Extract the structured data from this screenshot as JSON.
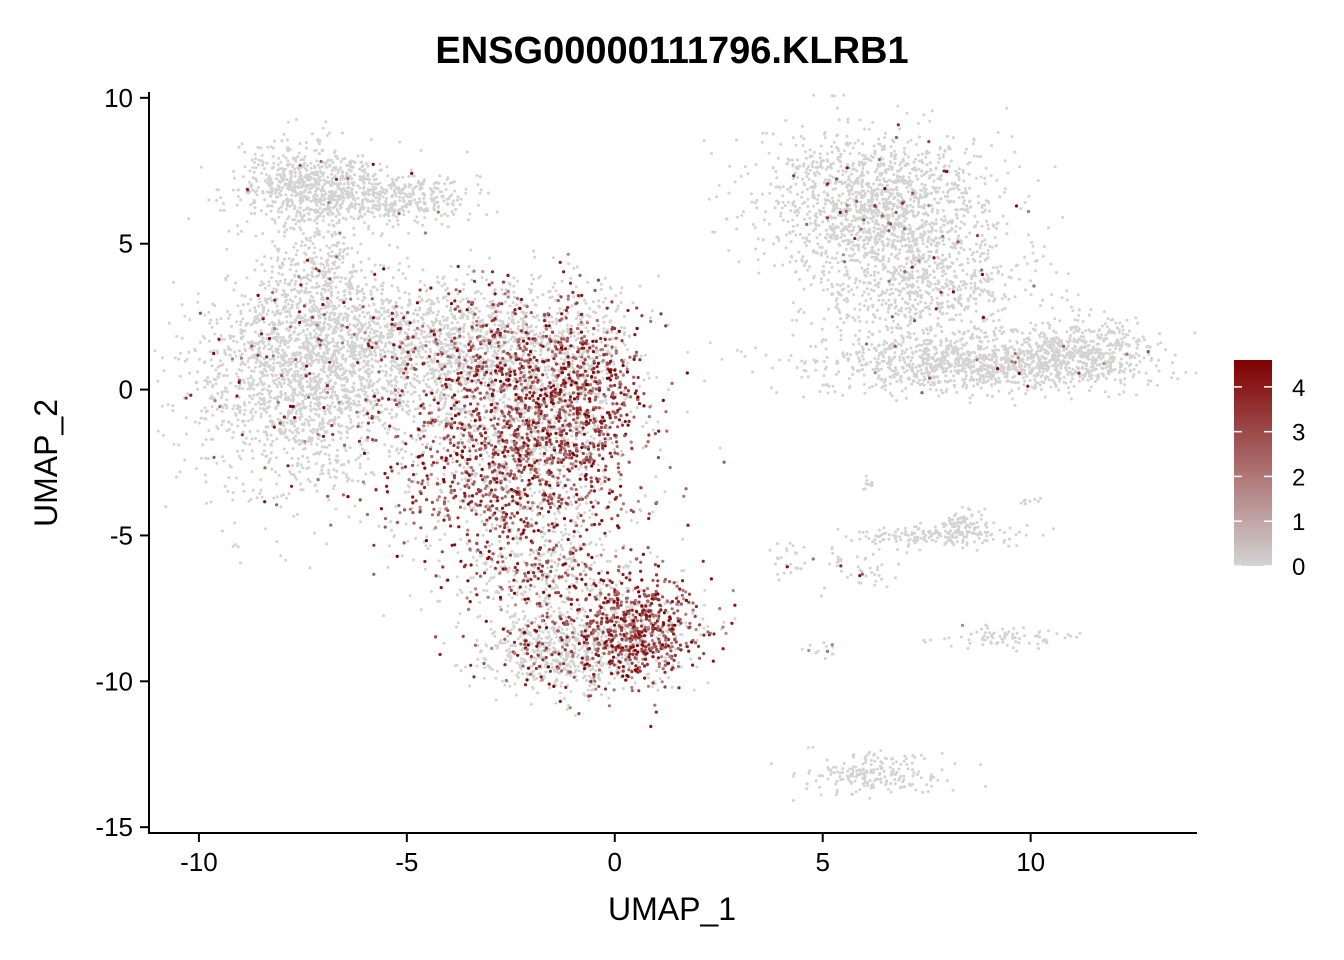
{
  "chart_data": {
    "type": "scatter",
    "title": "ENSG00000111796.KLRB1",
    "xlabel": "UMAP_1",
    "ylabel": "UMAP_2",
    "xlim": [
      -11.2,
      14
    ],
    "ylim": [
      -15.2,
      10.2
    ],
    "xticks": [
      -10,
      -5,
      0,
      5,
      10
    ],
    "yticks": [
      -15,
      -10,
      -5,
      0,
      5,
      10
    ],
    "xtick_labels": [
      "-10",
      "-5",
      "0",
      "5",
      "10"
    ],
    "ytick_labels": [
      "-15",
      "-10",
      "-5",
      "0",
      "5",
      "10"
    ],
    "grid": false,
    "legend_position": "right",
    "color_scale": {
      "low": "#d3d3d3",
      "high": "#7f0000",
      "min": 0,
      "max": 4.6,
      "ticks": [
        0,
        1,
        2,
        3,
        4
      ],
      "tick_labels": [
        "0",
        "1",
        "2",
        "3",
        "4"
      ]
    },
    "clusters": [
      {
        "cx": -7.3,
        "cy": 7.0,
        "sx": 0.85,
        "sy": 0.75,
        "n": 700,
        "expr_frac": 0.02
      },
      {
        "cx": -5.2,
        "cy": 6.6,
        "sx": 1.0,
        "sy": 0.45,
        "n": 350,
        "expr_frac": 0.02
      },
      {
        "cx": -7.2,
        "cy": 4.0,
        "sx": 0.6,
        "sy": 1.0,
        "n": 250,
        "expr_frac": 0.04
      },
      {
        "cx": -7.6,
        "cy": 0.4,
        "sx": 1.3,
        "sy": 1.9,
        "n": 1700,
        "expr_frac": 0.04
      },
      {
        "cx": -5.0,
        "cy": 1.5,
        "sx": 1.6,
        "sy": 1.1,
        "n": 1100,
        "expr_frac": 0.07
      },
      {
        "cx": -2.2,
        "cy": 1.8,
        "sx": 1.3,
        "sy": 1.0,
        "n": 700,
        "expr_frac": 0.25
      },
      {
        "cx": -2.5,
        "cy": -2.0,
        "sx": 1.5,
        "sy": 2.1,
        "n": 2000,
        "expr_frac": 0.55
      },
      {
        "cx": -1.0,
        "cy": -0.3,
        "sx": 0.8,
        "sy": 1.4,
        "n": 700,
        "expr_frac": 0.6
      },
      {
        "cx": -1.7,
        "cy": -6.3,
        "sx": 0.9,
        "sy": 0.8,
        "n": 350,
        "expr_frac": 0.3
      },
      {
        "cx": 0.6,
        "cy": -8.2,
        "sx": 0.75,
        "sy": 0.9,
        "n": 750,
        "expr_frac": 0.7
      },
      {
        "cx": -1.2,
        "cy": -9.0,
        "sx": 1.0,
        "sy": 0.7,
        "n": 700,
        "expr_frac": 0.2
      },
      {
        "cx": 6.3,
        "cy": 6.3,
        "sx": 1.4,
        "sy": 1.3,
        "n": 1500,
        "expr_frac": 0.02
      },
      {
        "cx": 7.5,
        "cy": 3.5,
        "sx": 1.2,
        "sy": 1.1,
        "n": 700,
        "expr_frac": 0.02
      },
      {
        "cx": 8.7,
        "cy": 0.9,
        "sx": 1.9,
        "sy": 0.5,
        "n": 1100,
        "expr_frac": 0.02
      },
      {
        "cx": 11.2,
        "cy": 1.3,
        "sx": 0.8,
        "sy": 0.6,
        "n": 400,
        "expr_frac": 0.01
      },
      {
        "cx": 7.7,
        "cy": -5.0,
        "sx": 1.0,
        "sy": 0.18,
        "n": 170,
        "expr_frac": 0.01
      },
      {
        "cx": 8.4,
        "cy": -4.6,
        "sx": 0.25,
        "sy": 0.25,
        "n": 70,
        "expr_frac": 0.0
      },
      {
        "cx": 9.5,
        "cy": -8.5,
        "sx": 0.9,
        "sy": 0.2,
        "n": 80,
        "expr_frac": 0.02
      },
      {
        "cx": 6.2,
        "cy": -13.2,
        "sx": 0.9,
        "sy": 0.35,
        "n": 200,
        "expr_frac": 0.0
      },
      {
        "cx": 6.1,
        "cy": -6.1,
        "sx": 0.6,
        "sy": 0.5,
        "n": 45,
        "expr_frac": 0.08
      },
      {
        "cx": 4.2,
        "cy": -5.8,
        "sx": 0.3,
        "sy": 0.3,
        "n": 25,
        "expr_frac": 0.1
      },
      {
        "cx": 5.0,
        "cy": -8.9,
        "sx": 0.3,
        "sy": 0.2,
        "n": 14,
        "expr_frac": 0.3
      },
      {
        "cx": 6.1,
        "cy": -3.2,
        "sx": 0.1,
        "sy": 0.1,
        "n": 10,
        "expr_frac": 0.0
      },
      {
        "cx": 10.0,
        "cy": -3.8,
        "sx": 0.15,
        "sy": 0.1,
        "n": 8,
        "expr_frac": 0.0
      }
    ]
  }
}
